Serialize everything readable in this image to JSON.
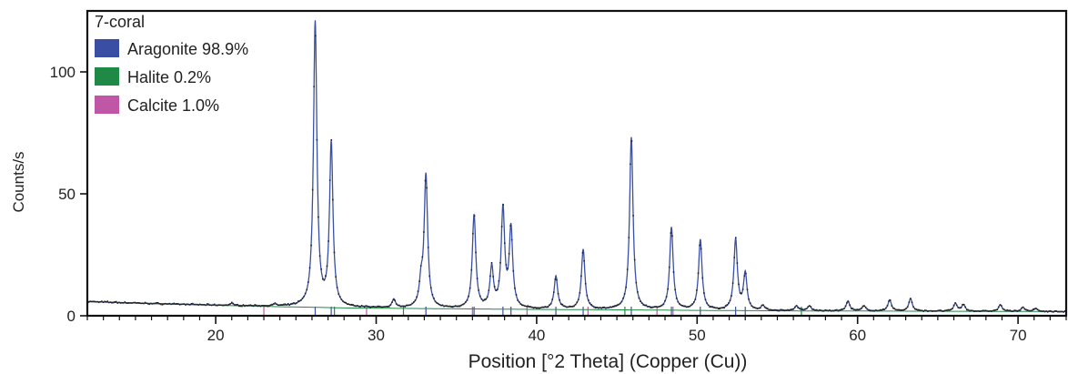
{
  "chart_data": {
    "type": "line",
    "title": "7-coral",
    "xlabel": "Position [°2 Theta] (Copper (Cu))",
    "ylabel": "Counts/s",
    "xlim": [
      12,
      73
    ],
    "ylim": [
      0,
      125
    ],
    "x_ticks": [
      20,
      30,
      40,
      50,
      60,
      70
    ],
    "y_ticks": [
      0,
      50,
      100
    ],
    "grid": false,
    "legend_position": "top-left",
    "colors": {
      "observed": "#222222",
      "fit": "#3a4fa3",
      "baseline": "#1f8a45"
    },
    "background": {
      "x": [
        12,
        16,
        20,
        24,
        26,
        28,
        34,
        40,
        46,
        50,
        56,
        62,
        68,
        73
      ],
      "y": [
        5.8,
        5.0,
        4.3,
        3.7,
        3.5,
        3.2,
        2.9,
        2.6,
        2.4,
        2.2,
        2.0,
        1.9,
        1.8,
        1.7
      ]
    },
    "peaks": [
      {
        "x": 21.0,
        "y": 5.0
      },
      {
        "x": 22.2,
        "y": 4.0
      },
      {
        "x": 23.7,
        "y": 4.5
      },
      {
        "x": 26.2,
        "y": 120
      },
      {
        "x": 27.2,
        "y": 70
      },
      {
        "x": 29.4,
        "y": 3.5
      },
      {
        "x": 31.1,
        "y": 6.5
      },
      {
        "x": 32.8,
        "y": 12
      },
      {
        "x": 33.1,
        "y": 57
      },
      {
        "x": 36.1,
        "y": 41
      },
      {
        "x": 37.2,
        "y": 19
      },
      {
        "x": 37.9,
        "y": 43
      },
      {
        "x": 38.4,
        "y": 35
      },
      {
        "x": 41.2,
        "y": 16
      },
      {
        "x": 42.9,
        "y": 27
      },
      {
        "x": 45.9,
        "y": 73
      },
      {
        "x": 48.4,
        "y": 36
      },
      {
        "x": 50.2,
        "y": 31
      },
      {
        "x": 52.4,
        "y": 31
      },
      {
        "x": 53.0,
        "y": 17
      },
      {
        "x": 54.1,
        "y": 4
      },
      {
        "x": 56.2,
        "y": 4
      },
      {
        "x": 57.0,
        "y": 4
      },
      {
        "x": 59.4,
        "y": 6
      },
      {
        "x": 60.4,
        "y": 4
      },
      {
        "x": 62.0,
        "y": 6.5
      },
      {
        "x": 63.3,
        "y": 7
      },
      {
        "x": 66.1,
        "y": 5
      },
      {
        "x": 66.6,
        "y": 4.5
      },
      {
        "x": 68.9,
        "y": 4.5
      },
      {
        "x": 70.3,
        "y": 3.5
      },
      {
        "x": 71.1,
        "y": 3
      }
    ],
    "reference_lines": [
      {
        "phase": "Aragonite",
        "color": "#3a4fa3",
        "x": [
          26.2,
          27.2,
          33.1,
          36.1,
          37.9,
          38.4,
          41.2,
          42.9,
          45.9,
          48.4,
          50.2,
          52.4,
          53.0
        ]
      },
      {
        "phase": "Halite",
        "color": "#1f8a45",
        "x": [
          27.4,
          31.7,
          45.5,
          56.5
        ]
      },
      {
        "phase": "Calcite",
        "color": "#c056a6",
        "x": [
          23.0,
          29.4,
          36.0,
          39.4,
          43.2,
          47.5,
          48.5
        ]
      }
    ],
    "legend": [
      {
        "label": "Aragonite 98.9%",
        "color": "#3a4fa3"
      },
      {
        "label": "Halite 0.2%",
        "color": "#1f8a45"
      },
      {
        "label": "Calcite 1.0%",
        "color": "#c056a6"
      }
    ]
  }
}
